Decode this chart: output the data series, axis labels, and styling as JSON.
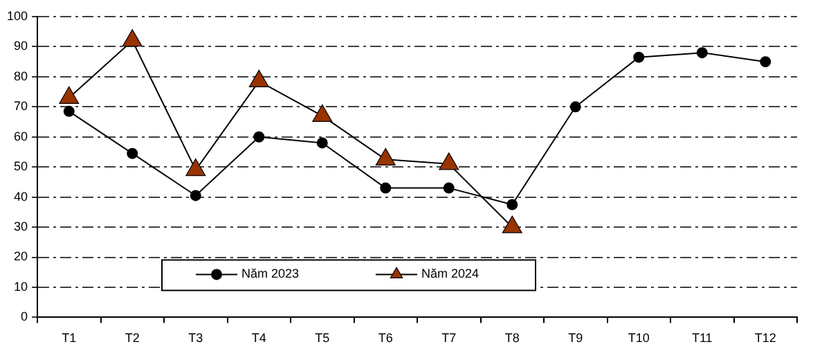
{
  "chart_data": {
    "type": "line",
    "categories": [
      "T1",
      "T2",
      "T3",
      "T4",
      "T5",
      "T6",
      "T7",
      "T8",
      "T9",
      "T10",
      "T11",
      "T12"
    ],
    "series": [
      {
        "name": "Năm 2023",
        "color": "#000000",
        "marker": "circle",
        "values": [
          68.5,
          54.5,
          40.5,
          60,
          58,
          43,
          43,
          37.5,
          70,
          86.5,
          88,
          85
        ]
      },
      {
        "name": "Năm 2024",
        "color": "#993300",
        "marker": "triangle",
        "values": [
          73,
          92,
          49,
          78.5,
          67,
          52.5,
          51,
          30,
          null,
          null,
          null,
          null
        ]
      }
    ],
    "ylim": [
      0,
      100
    ],
    "yticks": [
      0,
      10,
      20,
      30,
      40,
      50,
      60,
      70,
      80,
      90,
      100
    ],
    "grid": "y",
    "legend": "bottom",
    "line_style": "solid"
  }
}
